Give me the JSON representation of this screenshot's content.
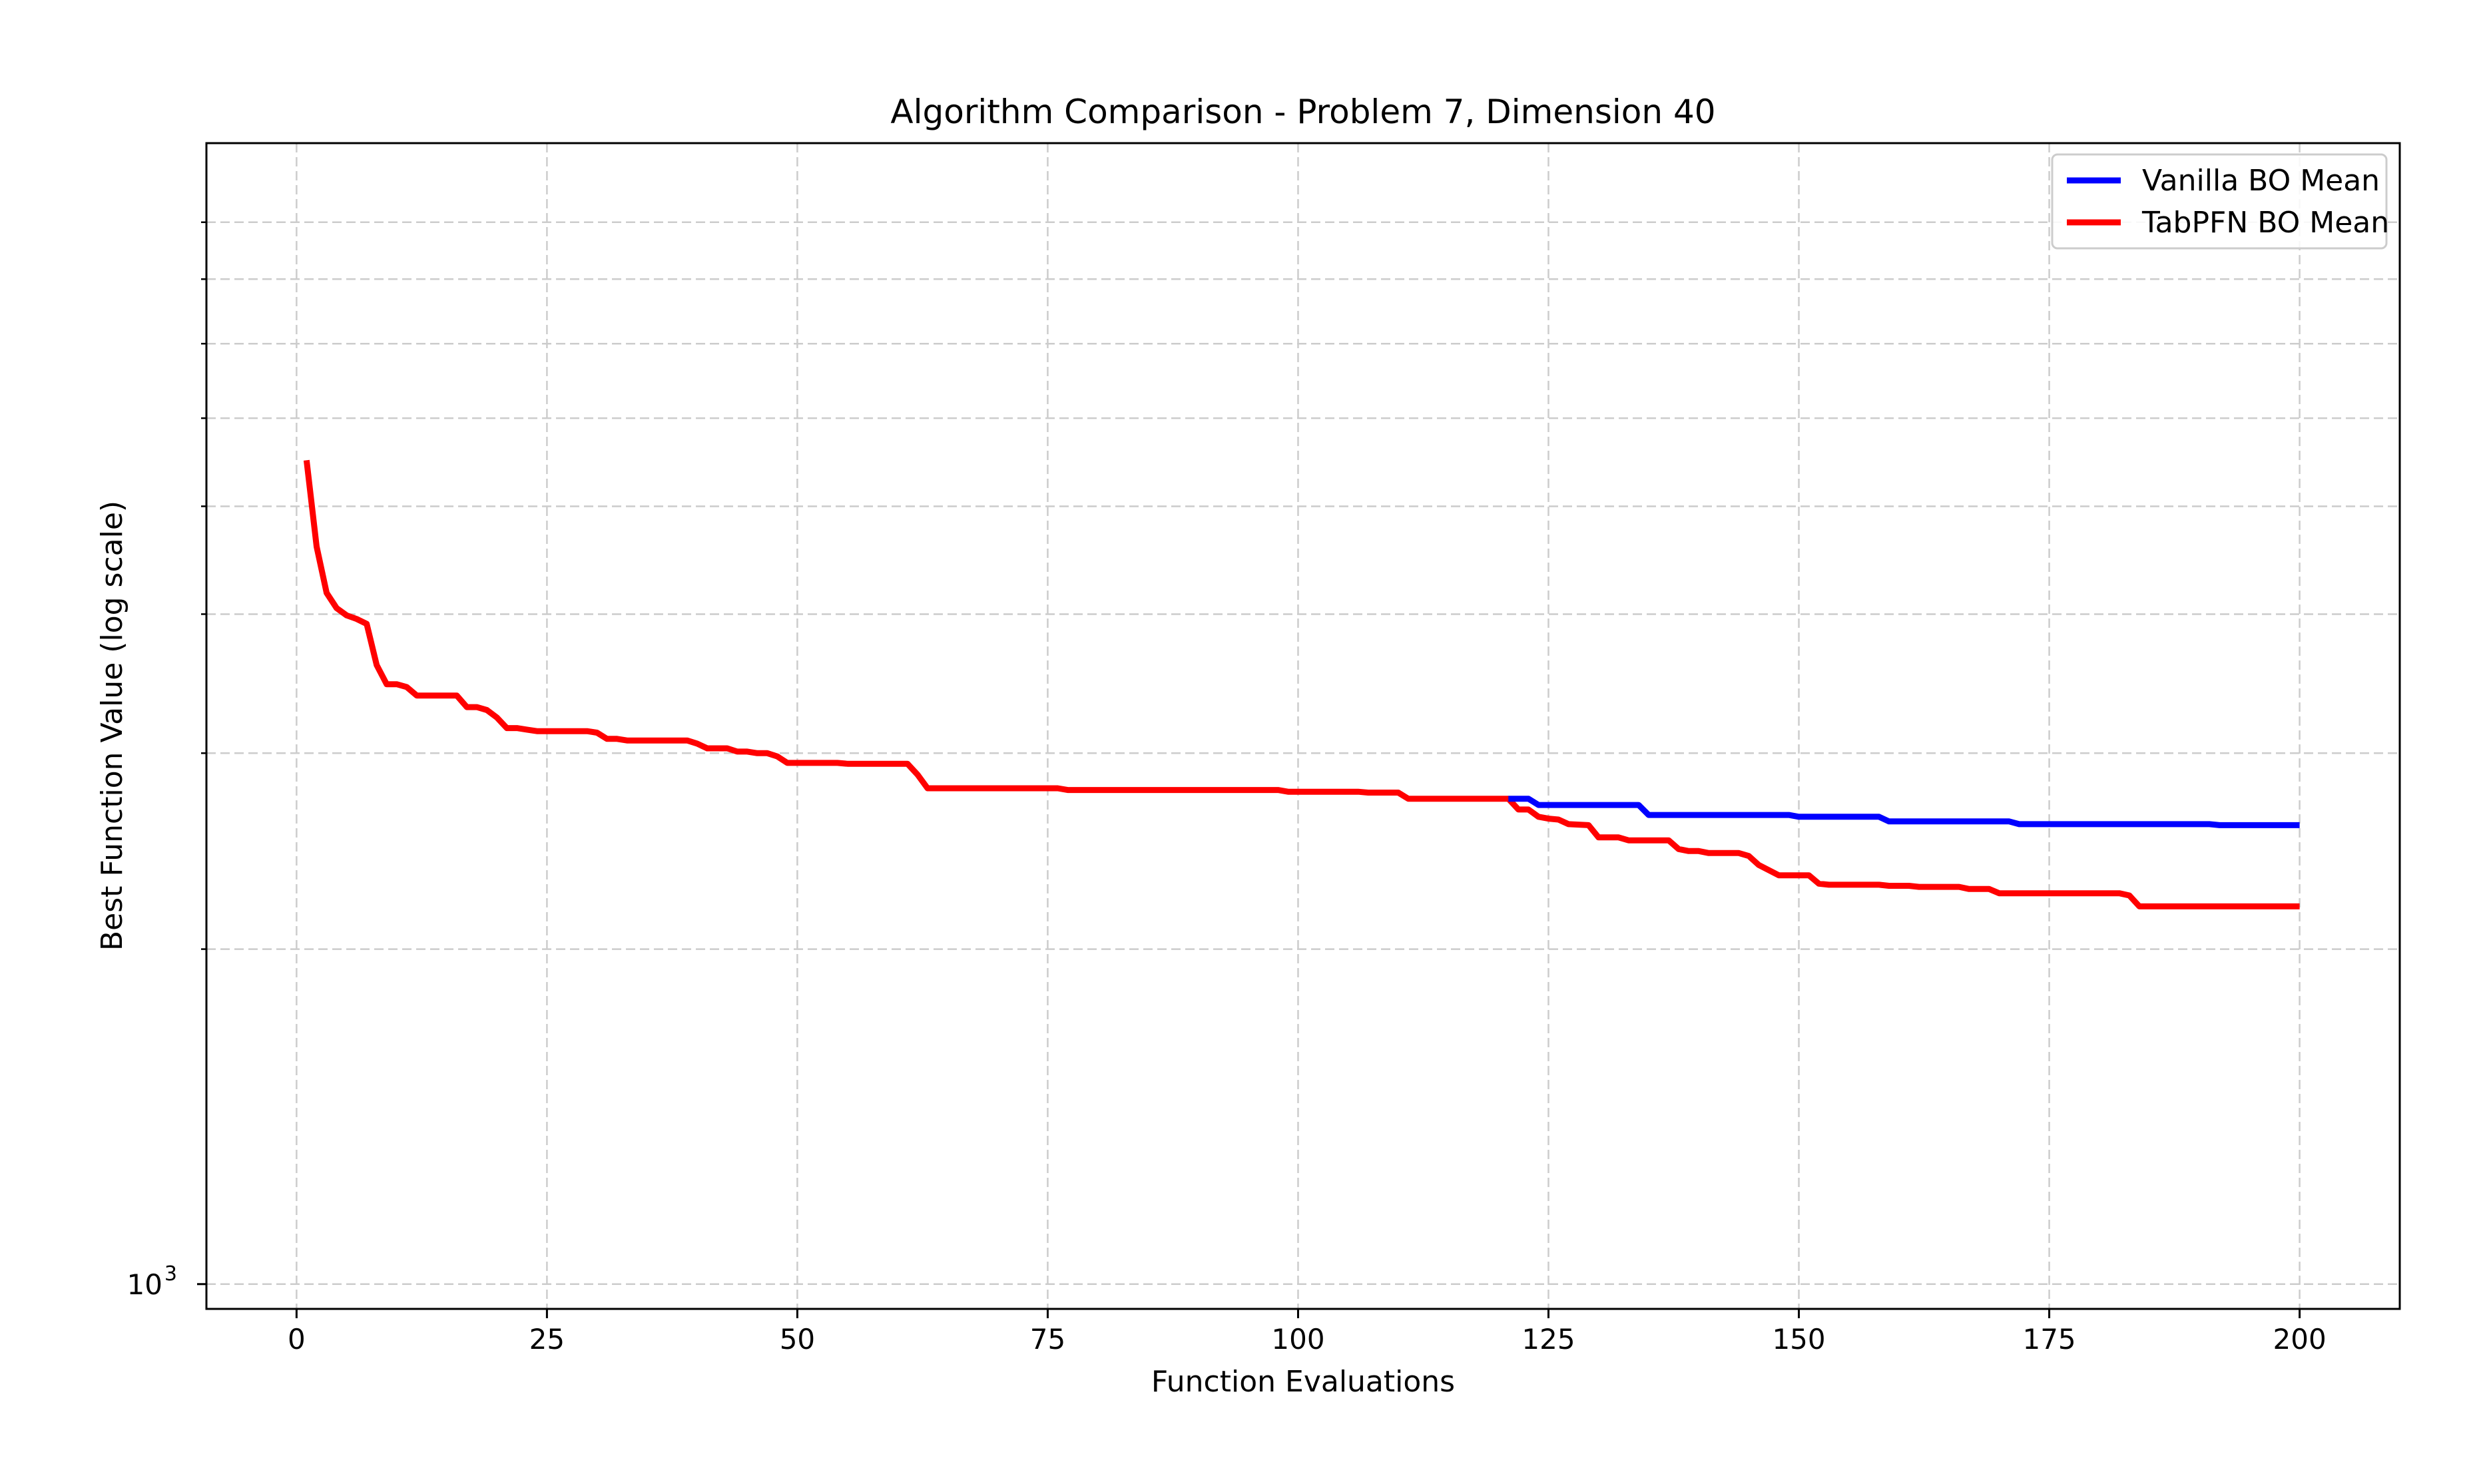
{
  "chart_data": {
    "type": "line",
    "title": "Algorithm Comparison - Problem 7, Dimension 40",
    "xlabel": "Function Evaluations",
    "ylabel": "Best Function Value (log scale)",
    "xlim": [
      -9,
      210
    ],
    "ylim": [
      950,
      10600
    ],
    "yscale": "log",
    "x_ticks": [
      0,
      25,
      50,
      75,
      100,
      125,
      150,
      175,
      200
    ],
    "x_tick_labels": [
      "0",
      "25",
      "50",
      "75",
      "100",
      "125",
      "150",
      "175",
      "200"
    ],
    "y_major_ticks": [
      1000
    ],
    "y_major_tick_labels": [
      "10",
      "3"
    ],
    "y_minor_ticks": [
      2000,
      3000,
      4000,
      5000,
      6000,
      7000,
      8000,
      9000
    ],
    "grid": true,
    "legend_position": "top-right",
    "series": [
      {
        "name": "TabPFN BO Mean",
        "color": "#ff0000",
        "points": [
          [
            1,
            5500
          ],
          [
            2,
            4600
          ],
          [
            3,
            4180
          ],
          [
            4,
            4050
          ],
          [
            5,
            3990
          ],
          [
            6,
            3960
          ],
          [
            7,
            3920
          ],
          [
            8,
            3600
          ],
          [
            9,
            3460
          ],
          [
            10,
            3460
          ],
          [
            11,
            3440
          ],
          [
            12,
            3380
          ],
          [
            13,
            3380
          ],
          [
            16,
            3380
          ],
          [
            17,
            3300
          ],
          [
            18,
            3300
          ],
          [
            19,
            3280
          ],
          [
            20,
            3230
          ],
          [
            21,
            3160
          ],
          [
            22,
            3160
          ],
          [
            23,
            3150
          ],
          [
            24,
            3140
          ],
          [
            29,
            3140
          ],
          [
            30,
            3130
          ],
          [
            31,
            3090
          ],
          [
            32,
            3090
          ],
          [
            33,
            3080
          ],
          [
            39,
            3080
          ],
          [
            40,
            3060
          ],
          [
            41,
            3030
          ],
          [
            43,
            3030
          ],
          [
            44,
            3010
          ],
          [
            45,
            3010
          ],
          [
            46,
            3000
          ],
          [
            47,
            3000
          ],
          [
            48,
            2980
          ],
          [
            49,
            2940
          ],
          [
            54,
            2940
          ],
          [
            55,
            2935
          ],
          [
            61,
            2935
          ],
          [
            62,
            2870
          ],
          [
            63,
            2790
          ],
          [
            75,
            2790
          ],
          [
            76,
            2790
          ],
          [
            77,
            2780
          ],
          [
            98,
            2780
          ],
          [
            99,
            2770
          ],
          [
            106,
            2770
          ],
          [
            107,
            2765
          ],
          [
            110,
            2765
          ],
          [
            111,
            2730
          ],
          [
            121,
            2730
          ],
          [
            122,
            2670
          ],
          [
            123,
            2670
          ],
          [
            124,
            2630
          ],
          [
            125,
            2620
          ],
          [
            126,
            2615
          ],
          [
            127,
            2590
          ],
          [
            129,
            2585
          ],
          [
            130,
            2520
          ],
          [
            132,
            2520
          ],
          [
            133,
            2505
          ],
          [
            137,
            2505
          ],
          [
            138,
            2460
          ],
          [
            139,
            2450
          ],
          [
            140,
            2450
          ],
          [
            141,
            2440
          ],
          [
            144,
            2440
          ],
          [
            145,
            2425
          ],
          [
            146,
            2380
          ],
          [
            148,
            2330
          ],
          [
            151,
            2330
          ],
          [
            152,
            2290
          ],
          [
            153,
            2285
          ],
          [
            155,
            2285
          ],
          [
            158,
            2285
          ],
          [
            159,
            2280
          ],
          [
            161,
            2280
          ],
          [
            162,
            2275
          ],
          [
            166,
            2275
          ],
          [
            167,
            2265
          ],
          [
            169,
            2265
          ],
          [
            170,
            2245
          ],
          [
            182,
            2245
          ],
          [
            183,
            2235
          ],
          [
            184,
            2185
          ],
          [
            200,
            2185
          ]
        ]
      },
      {
        "name": "Vanilla BO Mean",
        "color": "#0000ff",
        "points": [
          [
            121,
            2730
          ],
          [
            123,
            2730
          ],
          [
            124,
            2695
          ],
          [
            134,
            2695
          ],
          [
            135,
            2640
          ],
          [
            149,
            2640
          ],
          [
            150,
            2630
          ],
          [
            158,
            2630
          ],
          [
            159,
            2605
          ],
          [
            171,
            2605
          ],
          [
            172,
            2590
          ],
          [
            191,
            2590
          ],
          [
            192,
            2585
          ],
          [
            200,
            2585
          ]
        ]
      }
    ]
  }
}
